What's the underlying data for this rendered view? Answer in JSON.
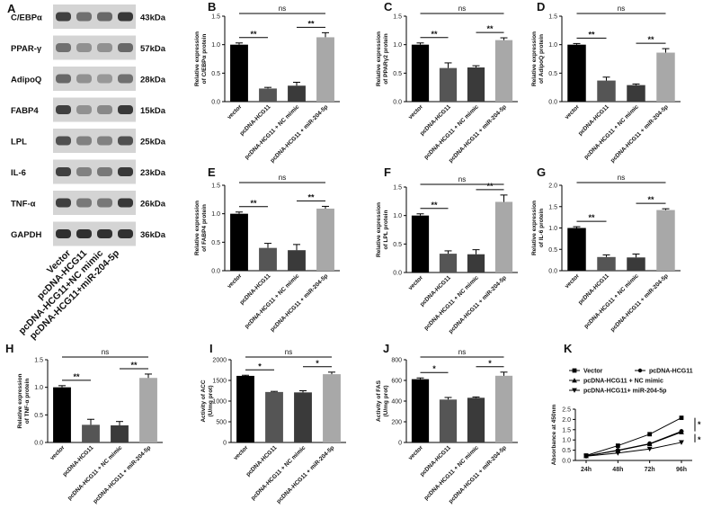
{
  "blot": {
    "panel_label": "A",
    "proteins": [
      {
        "name": "C/EBPα",
        "size": "43kDa",
        "intensity": [
          0.85,
          0.55,
          0.6,
          0.9
        ]
      },
      {
        "name": "PPAR-γ",
        "size": "57kDa",
        "intensity": [
          0.55,
          0.35,
          0.35,
          0.6
        ]
      },
      {
        "name": "AdipoQ",
        "size": "28kDa",
        "intensity": [
          0.6,
          0.35,
          0.3,
          0.55
        ]
      },
      {
        "name": "FABP4",
        "size": "15kDa",
        "intensity": [
          0.85,
          0.35,
          0.4,
          0.9
        ]
      },
      {
        "name": "LPL",
        "size": "25kDa",
        "intensity": [
          0.75,
          0.45,
          0.45,
          0.75
        ]
      },
      {
        "name": "IL-6",
        "size": "23kDa",
        "intensity": [
          0.85,
          0.45,
          0.5,
          0.9
        ]
      },
      {
        "name": "TNF-α",
        "size": "26kDa",
        "intensity": [
          0.85,
          0.5,
          0.5,
          0.9
        ]
      },
      {
        "name": "GAPDH",
        "size": "36kDa",
        "intensity": [
          0.95,
          0.95,
          0.95,
          0.95
        ]
      }
    ],
    "lanes": [
      "Vector",
      "pcDNA-HCG11",
      "pcDNA-HCG11+NC mimic",
      "pcDNA-HCG11+miR-204-5p"
    ]
  },
  "chart_data": [
    {
      "id": "B",
      "type": "bar",
      "ylabel": "Relative expression\nof C/EBPα protein",
      "categories": [
        "vector",
        "pcDNA-HCG11",
        "pcDNA-HCG11 + NC mimic",
        "pcDNA-HCG11 + miR-204-5p"
      ],
      "values": [
        1.0,
        0.23,
        0.28,
        1.13
      ],
      "errors": [
        0.03,
        0.02,
        0.06,
        0.08
      ],
      "ylim": [
        0,
        1.5
      ],
      "yticks": [
        "0.0",
        "0.5",
        "1.0",
        "1.5"
      ],
      "tick_values": [
        0,
        0.5,
        1.0,
        1.5
      ],
      "pairs": [
        "**",
        "**"
      ],
      "overall": "ns"
    },
    {
      "id": "C",
      "type": "bar",
      "ylabel": "Relative expression\nof PPARγ2 protein",
      "categories": [
        "vector",
        "pcDNA-HCG11",
        "pcDNA-HCG11 + NC mimic",
        "pcDNA-HCG11 + miR-204-5p"
      ],
      "values": [
        1.0,
        0.59,
        0.6,
        1.08
      ],
      "errors": [
        0.03,
        0.09,
        0.03,
        0.04
      ],
      "ylim": [
        0,
        1.5
      ],
      "yticks": [
        "0.0",
        "0.5",
        "1.0",
        "1.5"
      ],
      "tick_values": [
        0,
        0.5,
        1.0,
        1.5
      ],
      "pairs": [
        "**",
        "**"
      ],
      "overall": "ns"
    },
    {
      "id": "D",
      "type": "bar",
      "ylabel": "Relative expression\nof AdipoQ protein",
      "categories": [
        "vector",
        "pcDNA-HCG11",
        "pcDNA-HCG11 + NC mimic",
        "pcDNA-HCG11 + miR-204-5p"
      ],
      "values": [
        1.0,
        0.37,
        0.29,
        0.86
      ],
      "errors": [
        0.02,
        0.06,
        0.02,
        0.07
      ],
      "ylim": [
        0,
        1.5
      ],
      "yticks": [
        "0.0",
        "0.5",
        "1.0",
        "1.5"
      ],
      "tick_values": [
        0,
        0.5,
        1.0,
        1.5
      ],
      "pairs": [
        "**",
        "**"
      ],
      "overall": "ns"
    },
    {
      "id": "E",
      "type": "bar",
      "ylabel": "Relative expression\nof FABP4 protein",
      "categories": [
        "vector",
        "pcDNA-HCG11",
        "pcDNA-HCG11 + NC mimic",
        "pcDNA-HCG11 + miR-204-5p"
      ],
      "values": [
        1.0,
        0.4,
        0.36,
        1.09
      ],
      "errors": [
        0.03,
        0.08,
        0.1,
        0.04
      ],
      "ylim": [
        0,
        1.5
      ],
      "yticks": [
        "0.0",
        "0.5",
        "1.0",
        "1.5"
      ],
      "tick_values": [
        0,
        0.5,
        1.0,
        1.5
      ],
      "pairs": [
        "**",
        "**"
      ],
      "overall": "ns"
    },
    {
      "id": "F",
      "type": "bar",
      "ylabel": "Relative expression\nof LPL protein",
      "categories": [
        "vector",
        "pcDNA-HCG11",
        "pcDNA-HCG11 + NC mimic",
        "pcDNA-HCG11 + miR-204-5p"
      ],
      "values": [
        1.0,
        0.33,
        0.32,
        1.24
      ],
      "errors": [
        0.03,
        0.05,
        0.08,
        0.12
      ],
      "ylim": [
        0,
        1.5
      ],
      "yticks": [
        "0.0",
        "0.5",
        "1.0",
        "1.5"
      ],
      "tick_values": [
        0,
        0.5,
        1.0,
        1.5
      ],
      "pairs": [
        "**",
        "**"
      ],
      "overall": "ns"
    },
    {
      "id": "G",
      "type": "bar",
      "ylabel": "Relative expression\nof IL-6 protein",
      "categories": [
        "vector",
        "pcDNA-HCG11",
        "pcDNA-HCG11 + NC mimic",
        "pcDNA-HCG11 + miR-204-5p"
      ],
      "values": [
        1.0,
        0.32,
        0.31,
        1.42
      ],
      "errors": [
        0.03,
        0.05,
        0.08,
        0.03
      ],
      "ylim": [
        0,
        2.0
      ],
      "yticks": [
        "0.0",
        "0.5",
        "1.0",
        "1.5",
        "2.0"
      ],
      "tick_values": [
        0,
        0.5,
        1.0,
        1.5,
        2.0
      ],
      "pairs": [
        "**",
        "**"
      ],
      "overall": "ns"
    },
    {
      "id": "H",
      "type": "bar",
      "ylabel": "Relative expression\nof TNF-α protein",
      "categories": [
        "vector",
        "pcDNA-HCG11",
        "pcDNA-HCG11 + NC mimic",
        "pcDNA-HCG11 + miR-204-5p"
      ],
      "values": [
        1.0,
        0.32,
        0.31,
        1.17
      ],
      "errors": [
        0.03,
        0.1,
        0.07,
        0.07
      ],
      "ylim": [
        0,
        1.5
      ],
      "yticks": [
        "0.0",
        "0.5",
        "1.0",
        "1.5"
      ],
      "tick_values": [
        0,
        0.5,
        1.0,
        1.5
      ],
      "pairs": [
        "**",
        "**"
      ],
      "overall": "ns"
    },
    {
      "id": "I",
      "type": "bar",
      "ylabel": "Activity of ACC\n(U/mg prot)",
      "categories": [
        "vector",
        "pcDNA-HCG11",
        "pcDNA-HCG11 + NC mimic",
        "pcDNA-HCG11 + miR-204-5p"
      ],
      "values": [
        1610,
        1220,
        1210,
        1650
      ],
      "errors": [
        15,
        15,
        40,
        50
      ],
      "ylim": [
        0,
        2000
      ],
      "yticks": [
        "0",
        "500",
        "1000",
        "1500",
        "2000"
      ],
      "tick_values": [
        0,
        500,
        1000,
        1500,
        2000
      ],
      "pairs": [
        "*",
        "*"
      ],
      "overall": "ns"
    },
    {
      "id": "J",
      "type": "bar",
      "ylabel": "Activity of FAS\n(U/mg prot)",
      "categories": [
        "vector",
        "pcDNA-HCG11",
        "pcDNA-HCG11 + NC mimic",
        "pcDNA-HCG11 + miR-204-5p"
      ],
      "values": [
        612,
        415,
        432,
        645
      ],
      "errors": [
        12,
        20,
        8,
        35
      ],
      "ylim": [
        0,
        800
      ],
      "yticks": [
        "0",
        "200",
        "400",
        "600",
        "800"
      ],
      "tick_values": [
        0,
        200,
        400,
        600,
        800
      ],
      "pairs": [
        "*",
        "*"
      ],
      "overall": "ns"
    },
    {
      "id": "K",
      "type": "line",
      "ylabel": "Absorbance at 450nm",
      "x": [
        "24h",
        "48h",
        "72h",
        "96h"
      ],
      "ylim": [
        0,
        2.5
      ],
      "yticks": [
        "0.0",
        "0.5",
        "1.0",
        "1.5",
        "2.0",
        "2.5"
      ],
      "tick_values": [
        0,
        0.5,
        1.0,
        1.5,
        2.0,
        2.5
      ],
      "series": [
        {
          "name": "Vector",
          "marker": "square",
          "values": [
            0.24,
            0.72,
            1.28,
            2.08
          ]
        },
        {
          "name": "pcDNA-HCG11",
          "marker": "circle",
          "values": [
            0.22,
            0.5,
            0.82,
            1.42
          ]
        },
        {
          "name": "pcDNA-HCG11 + NC mimic",
          "marker": "triangle-up",
          "values": [
            0.22,
            0.48,
            0.8,
            1.38
          ]
        },
        {
          "name": "pcDNA-HCG11+ miR-204-5p",
          "marker": "triangle-down",
          "values": [
            0.21,
            0.36,
            0.56,
            0.88
          ]
        }
      ],
      "side_marks": [
        "*",
        "*"
      ]
    }
  ]
}
